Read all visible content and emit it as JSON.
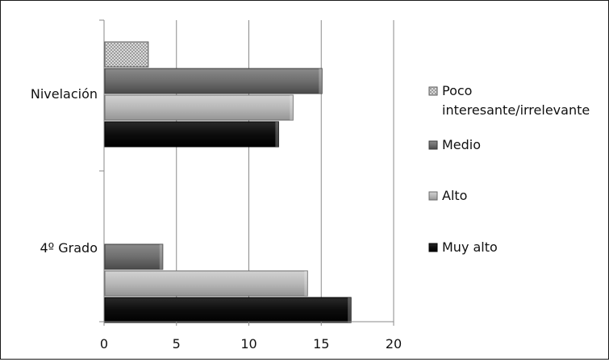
{
  "chart_data": {
    "type": "bar",
    "orientation": "horizontal",
    "categories": [
      "Nivelación",
      "4º Grado"
    ],
    "series": [
      {
        "name": "Poco interesante/irrelevante",
        "values": [
          3,
          0
        ],
        "color": "#c8c8c8",
        "pattern": "dotted"
      },
      {
        "name": "Medio",
        "values": [
          15,
          4
        ],
        "color": "#6e6e6e"
      },
      {
        "name": "Alto",
        "values": [
          13,
          14
        ],
        "color": "#b8b8b8"
      },
      {
        "name": "Muy alto",
        "values": [
          12,
          17
        ],
        "color": "#0d0d0d"
      }
    ],
    "x_ticks": [
      "0",
      "5",
      "10",
      "15",
      "20"
    ],
    "xlim": [
      0,
      20
    ],
    "grid": true,
    "legend_lines": [
      [
        "Poco",
        "interesante/irrelevante"
      ],
      [
        "Medio"
      ],
      [
        "Alto"
      ],
      [
        "Muy alto"
      ]
    ],
    "legend_position": "right"
  }
}
